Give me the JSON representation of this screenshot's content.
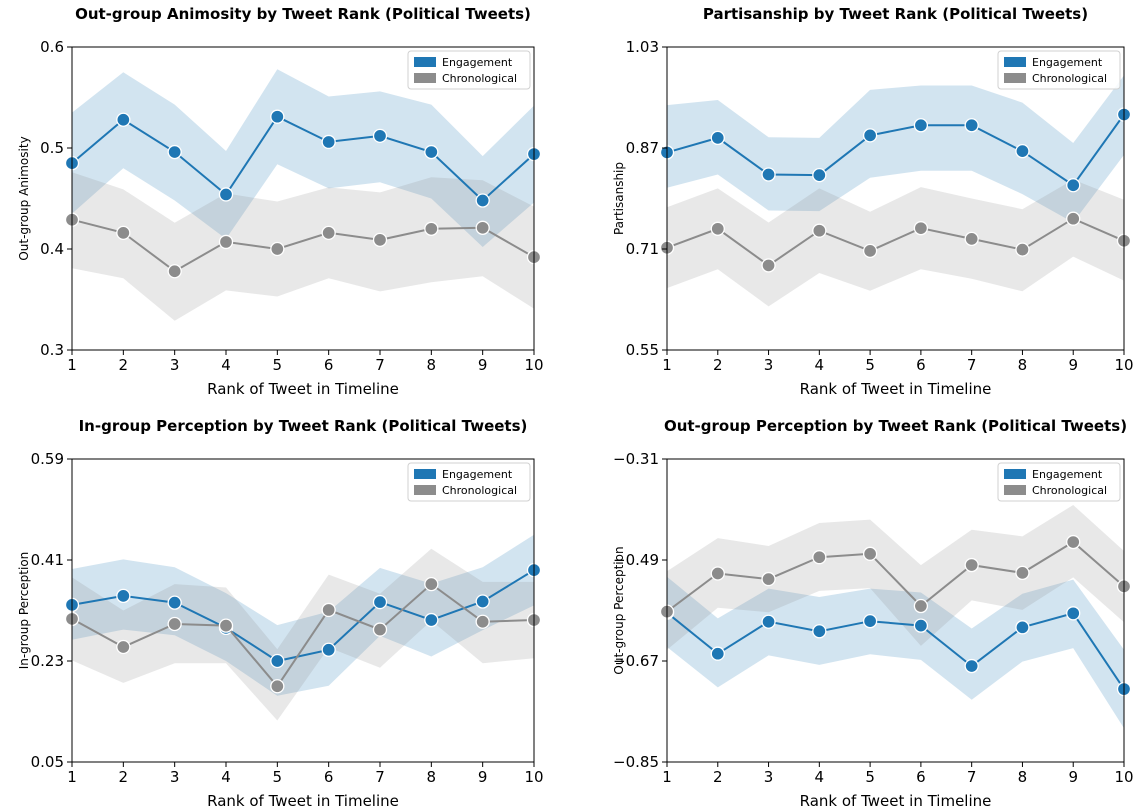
{
  "chart_data": [
    {
      "type": "line",
      "title": "Out-group Animosity by Tweet Rank (Political Tweets)",
      "xlabel": "Rank of Tweet in Timeline",
      "ylabel": "Out-group Animosity",
      "x": [
        1,
        2,
        3,
        4,
        5,
        6,
        7,
        8,
        9,
        10
      ],
      "xlim": [
        1,
        10
      ],
      "ylim": [
        0.3,
        0.6
      ],
      "yticks": [
        "0.3",
        "0.4",
        "0.5",
        "0.6"
      ],
      "ytick_values": [
        0.3,
        0.4,
        0.5,
        0.6
      ],
      "grid": false,
      "legend_position": "top-right",
      "series": [
        {
          "name": "Engagement",
          "color": "#1f77b4",
          "values": [
            0.485,
            0.528,
            0.496,
            0.454,
            0.531,
            0.506,
            0.512,
            0.496,
            0.448,
            0.494
          ],
          "lower": [
            0.435,
            0.48,
            0.448,
            0.41,
            0.484,
            0.46,
            0.466,
            0.45,
            0.402,
            0.446
          ],
          "upper": [
            0.535,
            0.575,
            0.543,
            0.497,
            0.578,
            0.551,
            0.556,
            0.543,
            0.492,
            0.542
          ]
        },
        {
          "name": "Chronological",
          "color": "#8c8c8c",
          "values": [
            0.429,
            0.416,
            0.378,
            0.407,
            0.4,
            0.416,
            0.409,
            0.42,
            0.421,
            0.392
          ],
          "lower": [
            0.381,
            0.371,
            0.329,
            0.359,
            0.353,
            0.371,
            0.358,
            0.367,
            0.373,
            0.341
          ],
          "upper": [
            0.476,
            0.459,
            0.426,
            0.455,
            0.447,
            0.461,
            0.456,
            0.471,
            0.468,
            0.442
          ]
        }
      ]
    },
    {
      "type": "line",
      "title": "Partisanship by Tweet Rank (Political Tweets)",
      "xlabel": "Rank of Tweet in Timeline",
      "ylabel": "Partisanship",
      "x": [
        1,
        2,
        3,
        4,
        5,
        6,
        7,
        8,
        9,
        10
      ],
      "xlim": [
        1,
        10
      ],
      "ylim": [
        0.55,
        1.03
      ],
      "yticks": [
        "0.55",
        "0.71",
        "0.87",
        "1.03"
      ],
      "ytick_values": [
        0.55,
        0.71,
        0.87,
        1.03
      ],
      "grid": false,
      "legend_position": "top-right",
      "series": [
        {
          "name": "Engagement",
          "color": "#1f77b4",
          "values": [
            0.863,
            0.886,
            0.828,
            0.827,
            0.89,
            0.906,
            0.906,
            0.865,
            0.811,
            0.923
          ],
          "lower": [
            0.807,
            0.828,
            0.771,
            0.77,
            0.823,
            0.834,
            0.834,
            0.797,
            0.752,
            0.859
          ],
          "upper": [
            0.938,
            0.946,
            0.887,
            0.886,
            0.962,
            0.969,
            0.969,
            0.942,
            0.878,
            0.985
          ]
        },
        {
          "name": "Chronological",
          "color": "#8c8c8c",
          "values": [
            0.712,
            0.742,
            0.684,
            0.739,
            0.707,
            0.743,
            0.726,
            0.709,
            0.758,
            0.723
          ],
          "lower": [
            0.648,
            0.678,
            0.619,
            0.672,
            0.644,
            0.678,
            0.663,
            0.643,
            0.698,
            0.66
          ],
          "upper": [
            0.776,
            0.806,
            0.752,
            0.806,
            0.769,
            0.808,
            0.79,
            0.773,
            0.82,
            0.788
          ]
        }
      ]
    },
    {
      "type": "line",
      "title": "In-group Perception by Tweet Rank (Political Tweets)",
      "xlabel": "Rank of Tweet in Timeline",
      "ylabel": "In-group Perception",
      "x": [
        1,
        2,
        3,
        4,
        5,
        6,
        7,
        8,
        9,
        10
      ],
      "xlim": [
        1,
        10
      ],
      "ylim": [
        0.05,
        0.59
      ],
      "yticks": [
        "0.05",
        "0.23",
        "0.41",
        "0.59"
      ],
      "ytick_values": [
        0.05,
        0.23,
        0.41,
        0.59
      ],
      "grid": false,
      "legend_position": "top-right",
      "series": [
        {
          "name": "Engagement",
          "color": "#1f77b4",
          "values": [
            0.33,
            0.346,
            0.334,
            0.289,
            0.23,
            0.25,
            0.335,
            0.303,
            0.336,
            0.392
          ],
          "lower": [
            0.268,
            0.286,
            0.276,
            0.23,
            0.168,
            0.186,
            0.275,
            0.238,
            0.285,
            0.329
          ],
          "upper": [
            0.394,
            0.411,
            0.397,
            0.351,
            0.294,
            0.318,
            0.396,
            0.368,
            0.397,
            0.455
          ]
        },
        {
          "name": "Chronological",
          "color": "#8c8c8c",
          "values": [
            0.305,
            0.255,
            0.296,
            0.293,
            0.185,
            0.321,
            0.286,
            0.367,
            0.3,
            0.303
          ],
          "lower": [
            0.231,
            0.191,
            0.226,
            0.226,
            0.124,
            0.254,
            0.218,
            0.302,
            0.226,
            0.235
          ],
          "upper": [
            0.379,
            0.32,
            0.367,
            0.361,
            0.251,
            0.384,
            0.35,
            0.43,
            0.371,
            0.371
          ]
        }
      ]
    },
    {
      "type": "line",
      "title": "Out-group Perception by Tweet Rank (Political Tweets)",
      "xlabel": "Rank of Tweet in Timeline",
      "ylabel": "Out-group Perception",
      "x": [
        1,
        2,
        3,
        4,
        5,
        6,
        7,
        8,
        9,
        10
      ],
      "xlim": [
        1,
        10
      ],
      "ylim": [
        -0.85,
        -0.31
      ],
      "yticks": [
        "−0.85",
        "−0.67",
        "−0.49",
        "−0.31"
      ],
      "ytick_values": [
        -0.85,
        -0.67,
        -0.49,
        -0.31
      ],
      "grid": false,
      "legend_position": "top-right",
      "series": [
        {
          "name": "Engagement",
          "color": "#1f77b4",
          "values": [
            -0.584,
            -0.657,
            -0.6,
            -0.617,
            -0.599,
            -0.607,
            -0.679,
            -0.61,
            -0.585,
            -0.72
          ],
          "lower": [
            -0.645,
            -0.717,
            -0.66,
            -0.677,
            -0.658,
            -0.668,
            -0.739,
            -0.671,
            -0.647,
            -0.79
          ],
          "upper": [
            -0.52,
            -0.594,
            -0.541,
            -0.556,
            -0.541,
            -0.548,
            -0.612,
            -0.55,
            -0.525,
            -0.65
          ]
        },
        {
          "name": "Chronological",
          "color": "#8c8c8c",
          "values": [
            -0.582,
            -0.514,
            -0.524,
            -0.485,
            -0.479,
            -0.572,
            -0.499,
            -0.513,
            -0.458,
            -0.537
          ],
          "lower": [
            -0.65,
            -0.575,
            -0.583,
            -0.545,
            -0.54,
            -0.643,
            -0.562,
            -0.579,
            -0.521,
            -0.601
          ],
          "upper": [
            -0.51,
            -0.451,
            -0.465,
            -0.424,
            -0.418,
            -0.499,
            -0.436,
            -0.448,
            -0.392,
            -0.474
          ]
        }
      ]
    }
  ]
}
